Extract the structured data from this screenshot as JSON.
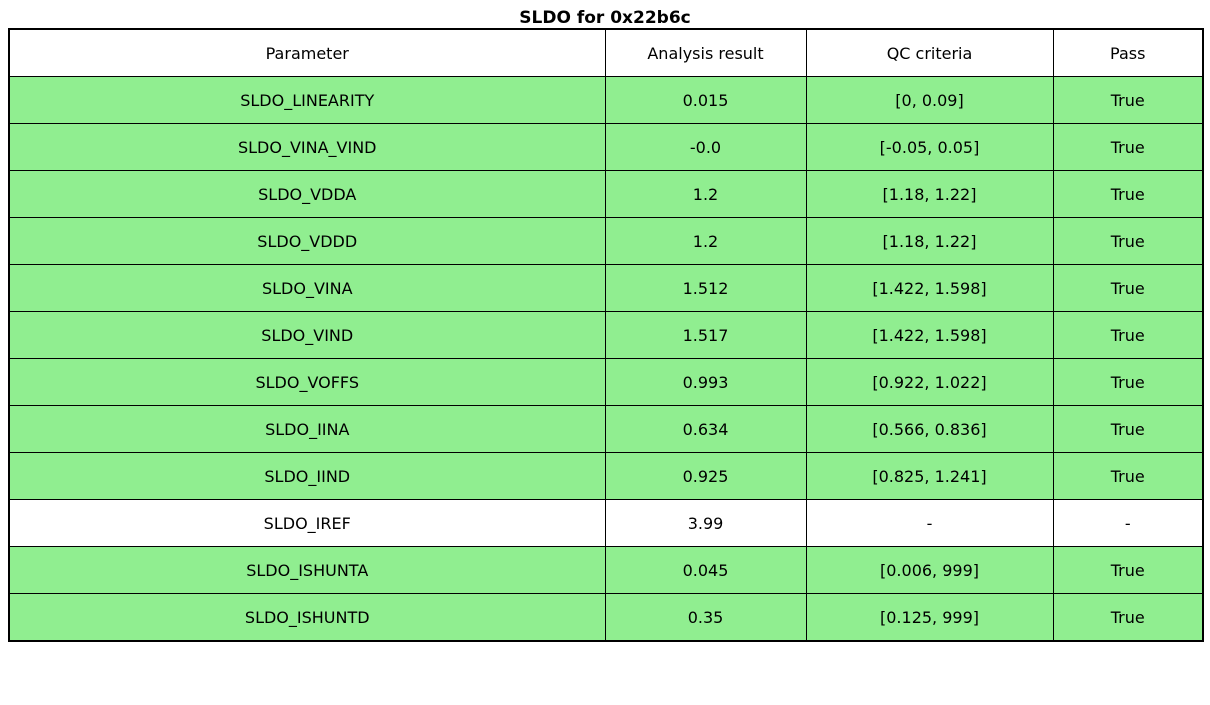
{
  "title": "SLDO for 0x22b6c",
  "table": {
    "columns": [
      "Parameter",
      "Analysis result",
      "QC criteria",
      "Pass"
    ],
    "rows": [
      {
        "parameter": "SLDO_LINEARITY",
        "analysis_result": "0.015",
        "qc_criteria": "[0, 0.09]",
        "pass": "True"
      },
      {
        "parameter": "SLDO_VINA_VIND",
        "analysis_result": "-0.0",
        "qc_criteria": "[-0.05, 0.05]",
        "pass": "True"
      },
      {
        "parameter": "SLDO_VDDA",
        "analysis_result": "1.2",
        "qc_criteria": "[1.18, 1.22]",
        "pass": "True"
      },
      {
        "parameter": "SLDO_VDDD",
        "analysis_result": "1.2",
        "qc_criteria": "[1.18, 1.22]",
        "pass": "True"
      },
      {
        "parameter": "SLDO_VINA",
        "analysis_result": "1.512",
        "qc_criteria": "[1.422, 1.598]",
        "pass": "True"
      },
      {
        "parameter": "SLDO_VIND",
        "analysis_result": "1.517",
        "qc_criteria": "[1.422, 1.598]",
        "pass": "True"
      },
      {
        "parameter": "SLDO_VOFFS",
        "analysis_result": "0.993",
        "qc_criteria": "[0.922, 1.022]",
        "pass": "True"
      },
      {
        "parameter": "SLDO_IINA",
        "analysis_result": "0.634",
        "qc_criteria": "[0.566, 0.836]",
        "pass": "True"
      },
      {
        "parameter": "SLDO_IIND",
        "analysis_result": "0.925",
        "qc_criteria": "[0.825, 1.241]",
        "pass": "True"
      },
      {
        "parameter": "SLDO_IREF",
        "analysis_result": "3.99",
        "qc_criteria": "-",
        "pass": "-"
      },
      {
        "parameter": "SLDO_ISHUNTA",
        "analysis_result": "0.045",
        "qc_criteria": "[0.006, 999]",
        "pass": "True"
      },
      {
        "parameter": "SLDO_ISHUNTD",
        "analysis_result": "0.35",
        "qc_criteria": "[0.125, 999]",
        "pass": "True"
      }
    ]
  },
  "colors": {
    "pass_row_bg": "#90EE90",
    "neutral_row_bg": "#FFFFFF",
    "border": "#000000"
  },
  "chart_data": {
    "type": "table",
    "title": "SLDO for 0x22b6c",
    "columns": [
      "Parameter",
      "Analysis result",
      "QC criteria",
      "Pass"
    ],
    "rows": [
      [
        "SLDO_LINEARITY",
        0.015,
        "[0, 0.09]",
        "True"
      ],
      [
        "SLDO_VINA_VIND",
        -0.0,
        "[-0.05, 0.05]",
        "True"
      ],
      [
        "SLDO_VDDA",
        1.2,
        "[1.18, 1.22]",
        "True"
      ],
      [
        "SLDO_VDDD",
        1.2,
        "[1.18, 1.22]",
        "True"
      ],
      [
        "SLDO_VINA",
        1.512,
        "[1.422, 1.598]",
        "True"
      ],
      [
        "SLDO_VIND",
        1.517,
        "[1.422, 1.598]",
        "True"
      ],
      [
        "SLDO_VOFFS",
        0.993,
        "[0.922, 1.022]",
        "True"
      ],
      [
        "SLDO_IINA",
        0.634,
        "[0.566, 0.836]",
        "True"
      ],
      [
        "SLDO_IIND",
        0.925,
        "[0.825, 1.241]",
        "True"
      ],
      [
        "SLDO_IREF",
        3.99,
        "-",
        "-"
      ],
      [
        "SLDO_ISHUNTA",
        0.045,
        "[0.006, 999]",
        "True"
      ],
      [
        "SLDO_ISHUNTD",
        0.35,
        "[0.125, 999]",
        "True"
      ]
    ],
    "layout_hints": {
      "pass_rows_highlighted_green": true,
      "neutral_rows_white": [
        "SLDO_IREF"
      ],
      "grid": true
    }
  }
}
